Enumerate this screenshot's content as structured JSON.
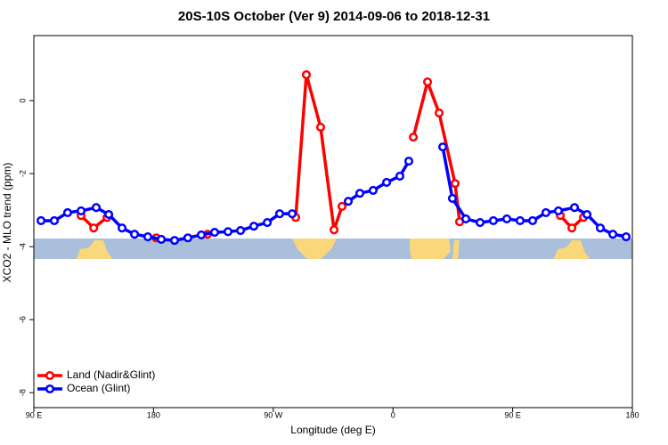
{
  "chart_data": {
    "type": "line",
    "title": "20S-10S October (Ver 9)   2014-09-06 to 2018-12-31",
    "x_label": "Longitude (deg E)",
    "y_label": "XCO2 - MLO trend (ppm)",
    "xlim": [
      90,
      540
    ],
    "ylim": [
      -8.41,
      1.78
    ],
    "xticks": [
      {
        "value": 90,
        "label": "90 E"
      },
      180,
      {
        "value": 270,
        "label": "90 W"
      },
      {
        "value": 360,
        "label": "0"
      },
      {
        "value": 450,
        "label": "90 E"
      },
      {
        "value": 540,
        "label": "180"
      }
    ],
    "yticks": [
      0,
      -2,
      -4,
      -6,
      -8
    ],
    "legend": "bottom-left",
    "series": [
      {
        "name": "Land (Nadir&Glint)",
        "color": "#ff0000",
        "x": [
          125.5,
          135,
          145,
          150,
          182,
          200,
          220.6,
          250,
          286.9,
          294.9,
          305.6,
          315.7,
          321.7,
          350,
          375.3,
          386,
          394.7,
          406.7,
          410.1,
          450,
          485.8,
          494.5,
          503.2
        ],
        "values": [
          -3.15,
          -3.49,
          -3.2,
          null,
          -3.76,
          null,
          -3.66,
          null,
          -3.2,
          0.71,
          -0.73,
          -3.54,
          -2.9,
          null,
          -1.0,
          0.51,
          -0.34,
          -2.27,
          -3.32,
          null,
          -3.15,
          -3.49,
          -3.2
        ]
      },
      {
        "name": "Ocean (Glint)",
        "color": "#0000ff",
        "x": [
          95.4,
          105.4,
          115.4,
          125.5,
          136.9,
          146.3,
          156.3,
          165.7,
          175.7,
          185.8,
          195.8,
          205.8,
          215.9,
          225.9,
          236,
          245.4,
          255.4,
          265.5,
          274.8,
          284.2,
          305,
          326.4,
          335.1,
          345.1,
          355.2,
          365.2,
          371.9,
          385,
          397.4,
          404.7,
          414.8,
          425.5,
          435.5,
          445.6,
          455.6,
          465,
          475,
          484.4,
          496.5,
          505.9,
          515.9,
          525.3,
          535.3
        ],
        "values": [
          -3.29,
          -3.29,
          -3.07,
          -3.02,
          -2.93,
          -3.12,
          -3.49,
          -3.66,
          -3.73,
          -3.8,
          -3.83,
          -3.76,
          -3.68,
          -3.61,
          -3.59,
          -3.56,
          -3.44,
          -3.34,
          -3.1,
          -3.1,
          null,
          -2.76,
          -2.54,
          -2.46,
          -2.24,
          -2.07,
          -1.66,
          null,
          -1.27,
          -2.68,
          -3.24,
          -3.34,
          -3.29,
          -3.24,
          -3.29,
          -3.29,
          -3.07,
          -3.02,
          -2.93,
          -3.12,
          -3.49,
          -3.66,
          -3.73
        ]
      }
    ]
  }
}
